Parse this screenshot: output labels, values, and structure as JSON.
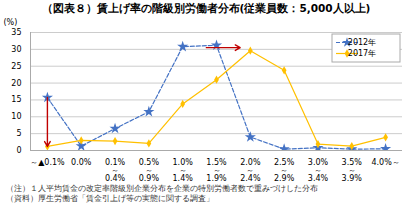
{
  "chart_data": {
    "type": "line",
    "title": "（図表８）賃上げ率の階級別労働者分布(従業員数：5,000人以上)",
    "ylabel": "(%)",
    "categories": [
      "～▲0.1%",
      "0.0%",
      "0.1%\n～\n0.4%",
      "0.5%\n～\n0.9%",
      "1.0%\n～\n1.4%",
      "1.5%\n～\n1.9%",
      "2.0%\n～\n2.4%",
      "2.5%\n～\n2.9%",
      "3.0%\n～\n3.4%",
      "3.5%\n～\n3.9%",
      "4.0%～"
    ],
    "series": [
      {
        "name": "2012年",
        "color": "#4472c4",
        "marker": "star",
        "line_style": "dashed",
        "values": [
          15.7,
          1.3,
          6.5,
          11.5,
          30.8,
          31.2,
          4.0,
          0.4,
          0.8,
          0.4,
          0.5
        ]
      },
      {
        "name": "2017年",
        "color": "#ffc000",
        "marker": "diamond",
        "line_style": "solid",
        "values": [
          1.2,
          3.0,
          2.8,
          2.1,
          13.8,
          21.0,
          29.6,
          23.8,
          1.9,
          1.3,
          3.9
        ]
      }
    ],
    "ylim": [
      0,
      35
    ],
    "yticks": [
      0,
      5,
      10,
      15,
      20,
      25,
      30,
      35
    ],
    "grid": true,
    "legend": "upper right",
    "annotations": [
      {
        "type": "arrow",
        "x1": 0,
        "y1": 15.7,
        "x2": 0,
        "y2": 1.2,
        "color": "#c00000"
      },
      {
        "type": "arrow",
        "x1": 4.7,
        "y1": 30.5,
        "x2": 5.7,
        "y2": 30.5,
        "color": "#c00000"
      }
    ],
    "notes": [
      "（注）１人平均賃金の改定率階級別企業分布を企業の特別労働者数で重みづけした分布",
      "（資料）厚生労働省「賃金引上げ等の実態に関する調査」"
    ]
  }
}
